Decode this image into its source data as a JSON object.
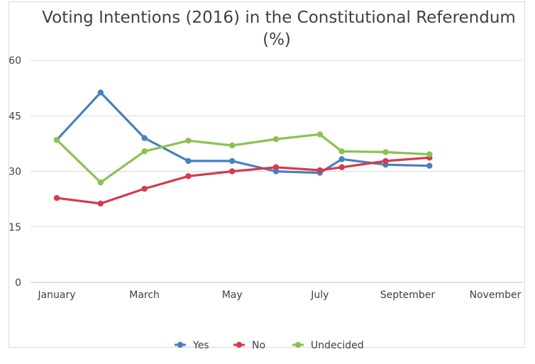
{
  "chart_data": {
    "type": "line",
    "title": "Voting Intentions (2016) in the Constitutional Referendum",
    "subtitle": "(%)",
    "xlabel": "",
    "ylabel": "",
    "ylim": [
      0,
      60
    ],
    "yticks": [
      "0",
      "15",
      "30",
      "45",
      "60"
    ],
    "x_tick_labels": [
      "January",
      "March",
      "May",
      "July",
      "September",
      "November"
    ],
    "grid": true,
    "legend_position": "bottom",
    "series": [
      {
        "name": "Yes",
        "color": "#4a7fc1",
        "values": [
          {
            "month": 1.0,
            "value": 38.5
          },
          {
            "month": 2.0,
            "value": 51.3
          },
          {
            "month": 3.0,
            "value": 39.0
          },
          {
            "month": 4.0,
            "value": 32.8
          },
          {
            "month": 5.0,
            "value": 32.8
          },
          {
            "month": 6.0,
            "value": 30.0
          },
          {
            "month": 7.0,
            "value": 29.6
          },
          {
            "month": 7.5,
            "value": 33.3
          },
          {
            "month": 8.5,
            "value": 31.8
          },
          {
            "month": 9.5,
            "value": 31.5
          }
        ]
      },
      {
        "name": "No",
        "color": "#d43a4a",
        "values": [
          {
            "month": 1.0,
            "value": 22.8
          },
          {
            "month": 2.0,
            "value": 21.3
          },
          {
            "month": 3.0,
            "value": 25.3
          },
          {
            "month": 4.0,
            "value": 28.7
          },
          {
            "month": 5.0,
            "value": 30.0
          },
          {
            "month": 6.0,
            "value": 31.1
          },
          {
            "month": 7.0,
            "value": 30.3
          },
          {
            "month": 7.5,
            "value": 31.1
          },
          {
            "month": 8.5,
            "value": 32.8
          },
          {
            "month": 9.5,
            "value": 33.7
          }
        ]
      },
      {
        "name": "Undecided",
        "color": "#8cc152",
        "values": [
          {
            "month": 1.0,
            "value": 38.5
          },
          {
            "month": 2.0,
            "value": 27.0
          },
          {
            "month": 3.0,
            "value": 35.4
          },
          {
            "month": 4.0,
            "value": 38.3
          },
          {
            "month": 5.0,
            "value": 37.0
          },
          {
            "month": 6.0,
            "value": 38.7
          },
          {
            "month": 7.0,
            "value": 40.0
          },
          {
            "month": 7.5,
            "value": 35.4
          },
          {
            "month": 8.5,
            "value": 35.2
          },
          {
            "month": 9.5,
            "value": 34.6
          }
        ]
      }
    ]
  }
}
